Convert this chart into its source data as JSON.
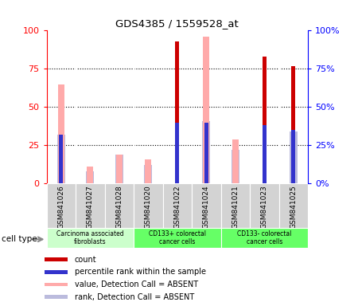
{
  "title": "GDS4385 / 1559528_at",
  "samples": [
    "GSM841026",
    "GSM841027",
    "GSM841028",
    "GSM841020",
    "GSM841022",
    "GSM841024",
    "GSM841021",
    "GSM841023",
    "GSM841025"
  ],
  "groups": [
    {
      "name": "Carcinoma associated\nfibroblasts",
      "start": 0,
      "end": 3,
      "color": "#ccffcc"
    },
    {
      "name": "CD133+ colorectal\ncancer cells",
      "start": 3,
      "end": 6,
      "color": "#66ff66"
    },
    {
      "name": "CD133- colorectal\ncancer cells",
      "start": 6,
      "end": 9,
      "color": "#66ff66"
    }
  ],
  "count": [
    0,
    0,
    0,
    0,
    93,
    0,
    0,
    83,
    77
  ],
  "percentile_rank": [
    32,
    0,
    0,
    0,
    40,
    40,
    0,
    38,
    35
  ],
  "value_absent": [
    65,
    11,
    19,
    16,
    0,
    96,
    29,
    0,
    0
  ],
  "rank_absent": [
    32,
    8,
    19,
    12,
    0,
    41,
    22,
    0,
    34
  ],
  "count_color": "#cc0000",
  "percentile_color": "#3333cc",
  "value_absent_color": "#ffaaaa",
  "rank_absent_color": "#bbbbdd",
  "ylim": [
    0,
    100
  ],
  "background_color": "#ffffff",
  "tick_positions": [
    0,
    25,
    50,
    75,
    100
  ],
  "bar_width": 0.18
}
